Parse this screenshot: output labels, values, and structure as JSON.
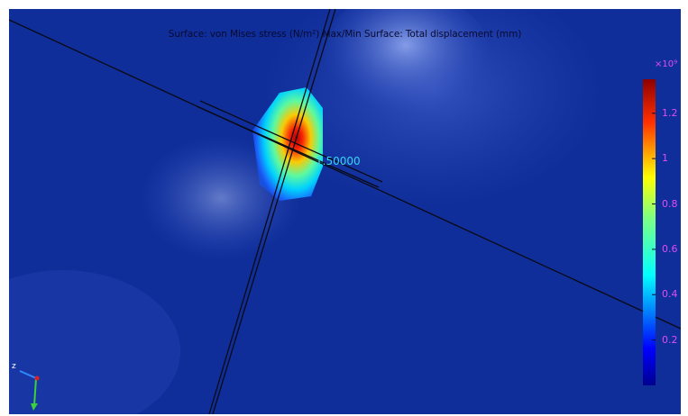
{
  "plot": {
    "title": "Surface: von Mises stress (N/m²)  Max/Min Surface: Total displacement (mm)",
    "annotation_value": "1.50000",
    "axis_label_z": "z"
  },
  "colorbar": {
    "exponent": "×10⁹",
    "ticks": [
      {
        "label": "1.2",
        "value": 1.2
      },
      {
        "label": "1",
        "value": 1.0
      },
      {
        "label": "0.8",
        "value": 0.8
      },
      {
        "label": "0.6",
        "value": 0.6
      },
      {
        "label": "0.4",
        "value": 0.4
      },
      {
        "label": "0.2",
        "value": 0.2
      }
    ],
    "range": [
      0,
      1.35
    ],
    "colormap": "rainbow"
  },
  "colors": {
    "background": "#0f2e9a",
    "title_text": "#0a0a30",
    "tick_text": "#e04df0",
    "annotation_text": "#3ad3f0",
    "beam_line": "#0a0a14",
    "axis_y_arrow": "#3bd13b",
    "axis_z_arrow": "#2a8cff",
    "axis_origin": "#e02020"
  }
}
